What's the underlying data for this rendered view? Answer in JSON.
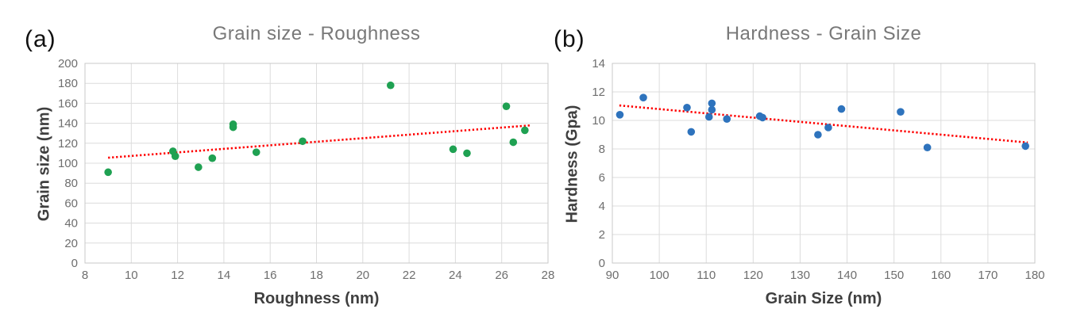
{
  "page": {
    "background": "#ffffff"
  },
  "chart_data": [
    {
      "type": "scatter",
      "panel": "(a)",
      "title": "Grain size - Roughness",
      "xlabel": "Roughness (nm)",
      "ylabel": "Grain size (nm)",
      "xlim": [
        8,
        28
      ],
      "xstep": 2,
      "ylim": [
        0,
        200
      ],
      "ystep": 20,
      "grid": true,
      "legend": "none",
      "marker_color": "#1FA152",
      "points": [
        [
          9.0,
          91
        ],
        [
          11.8,
          112
        ],
        [
          11.9,
          107
        ],
        [
          12.9,
          96
        ],
        [
          13.5,
          105
        ],
        [
          14.4,
          139
        ],
        [
          14.4,
          136
        ],
        [
          15.4,
          111
        ],
        [
          17.4,
          122
        ],
        [
          21.2,
          178
        ],
        [
          23.9,
          114
        ],
        [
          24.5,
          110
        ],
        [
          26.2,
          157
        ],
        [
          26.5,
          121
        ],
        [
          27.0,
          133
        ]
      ],
      "trendline": {
        "style": "dotted",
        "color": "#FF0000",
        "from": [
          9.0,
          105.5
        ],
        "to": [
          27.3,
          138.0
        ]
      }
    },
    {
      "type": "scatter",
      "panel": "(b)",
      "title": "Hardness - Grain Size",
      "xlabel": "Grain Size (nm)",
      "ylabel": "Hardness (Gpa)",
      "xlim": [
        90,
        180
      ],
      "xstep": 10,
      "ylim": [
        0,
        14
      ],
      "ystep": 2,
      "grid": true,
      "legend": "none",
      "marker_color": "#2E73BD",
      "points": [
        [
          91.6,
          10.4
        ],
        [
          96.6,
          11.6
        ],
        [
          105.9,
          10.9
        ],
        [
          106.8,
          9.2
        ],
        [
          110.6,
          10.25
        ],
        [
          111.2,
          11.2
        ],
        [
          111.2,
          10.75
        ],
        [
          114.4,
          10.1
        ],
        [
          121.4,
          10.3
        ],
        [
          122.0,
          10.2
        ],
        [
          133.8,
          9.0
        ],
        [
          136.0,
          9.5
        ],
        [
          138.8,
          10.8
        ],
        [
          151.4,
          10.6
        ],
        [
          157.1,
          8.1
        ],
        [
          178.0,
          8.2
        ]
      ],
      "trendline": {
        "style": "dotted",
        "color": "#FF0000",
        "from": [
          91.5,
          11.05
        ],
        "to": [
          178.5,
          8.45
        ]
      }
    }
  ],
  "style_colors": {
    "gridline": "#dcdcdc",
    "plot_border": "#c9c9c9",
    "tick_label": "#6e6e6e",
    "title": "#787878",
    "axis_title": "#3f3f3f"
  }
}
